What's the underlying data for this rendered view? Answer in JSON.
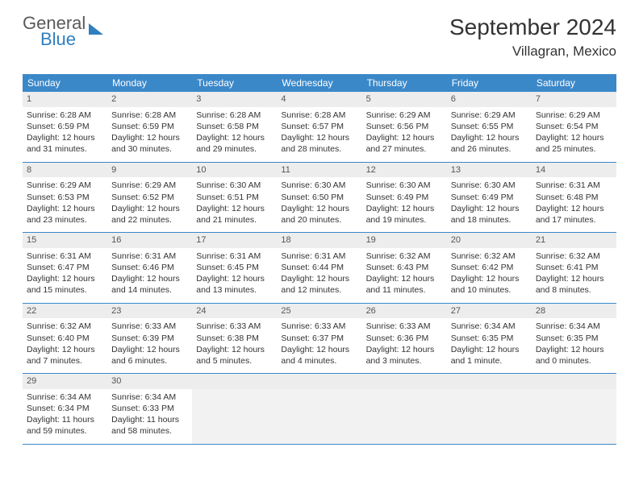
{
  "logo": {
    "word1": "General",
    "word2": "Blue"
  },
  "title": "September 2024",
  "location": "Villagran, Mexico",
  "colors": {
    "header_bg": "#3b88c9",
    "header_text": "#ffffff",
    "daynum_bg": "#ededed",
    "body_text": "#333333",
    "divider": "#3b88c9",
    "logo_gray": "#5a5a5a",
    "logo_blue": "#2f7fbf"
  },
  "typography": {
    "title_fontsize": 28,
    "location_fontsize": 17,
    "dayheader_fontsize": 12,
    "cell_fontsize": 10.5
  },
  "day_names": [
    "Sunday",
    "Monday",
    "Tuesday",
    "Wednesday",
    "Thursday",
    "Friday",
    "Saturday"
  ],
  "weeks": [
    [
      {
        "n": "1",
        "sunrise": "Sunrise: 6:28 AM",
        "sunset": "Sunset: 6:59 PM",
        "day": "Daylight: 12 hours and 31 minutes."
      },
      {
        "n": "2",
        "sunrise": "Sunrise: 6:28 AM",
        "sunset": "Sunset: 6:59 PM",
        "day": "Daylight: 12 hours and 30 minutes."
      },
      {
        "n": "3",
        "sunrise": "Sunrise: 6:28 AM",
        "sunset": "Sunset: 6:58 PM",
        "day": "Daylight: 12 hours and 29 minutes."
      },
      {
        "n": "4",
        "sunrise": "Sunrise: 6:28 AM",
        "sunset": "Sunset: 6:57 PM",
        "day": "Daylight: 12 hours and 28 minutes."
      },
      {
        "n": "5",
        "sunrise": "Sunrise: 6:29 AM",
        "sunset": "Sunset: 6:56 PM",
        "day": "Daylight: 12 hours and 27 minutes."
      },
      {
        "n": "6",
        "sunrise": "Sunrise: 6:29 AM",
        "sunset": "Sunset: 6:55 PM",
        "day": "Daylight: 12 hours and 26 minutes."
      },
      {
        "n": "7",
        "sunrise": "Sunrise: 6:29 AM",
        "sunset": "Sunset: 6:54 PM",
        "day": "Daylight: 12 hours and 25 minutes."
      }
    ],
    [
      {
        "n": "8",
        "sunrise": "Sunrise: 6:29 AM",
        "sunset": "Sunset: 6:53 PM",
        "day": "Daylight: 12 hours and 23 minutes."
      },
      {
        "n": "9",
        "sunrise": "Sunrise: 6:29 AM",
        "sunset": "Sunset: 6:52 PM",
        "day": "Daylight: 12 hours and 22 minutes."
      },
      {
        "n": "10",
        "sunrise": "Sunrise: 6:30 AM",
        "sunset": "Sunset: 6:51 PM",
        "day": "Daylight: 12 hours and 21 minutes."
      },
      {
        "n": "11",
        "sunrise": "Sunrise: 6:30 AM",
        "sunset": "Sunset: 6:50 PM",
        "day": "Daylight: 12 hours and 20 minutes."
      },
      {
        "n": "12",
        "sunrise": "Sunrise: 6:30 AM",
        "sunset": "Sunset: 6:49 PM",
        "day": "Daylight: 12 hours and 19 minutes."
      },
      {
        "n": "13",
        "sunrise": "Sunrise: 6:30 AM",
        "sunset": "Sunset: 6:49 PM",
        "day": "Daylight: 12 hours and 18 minutes."
      },
      {
        "n": "14",
        "sunrise": "Sunrise: 6:31 AM",
        "sunset": "Sunset: 6:48 PM",
        "day": "Daylight: 12 hours and 17 minutes."
      }
    ],
    [
      {
        "n": "15",
        "sunrise": "Sunrise: 6:31 AM",
        "sunset": "Sunset: 6:47 PM",
        "day": "Daylight: 12 hours and 15 minutes."
      },
      {
        "n": "16",
        "sunrise": "Sunrise: 6:31 AM",
        "sunset": "Sunset: 6:46 PM",
        "day": "Daylight: 12 hours and 14 minutes."
      },
      {
        "n": "17",
        "sunrise": "Sunrise: 6:31 AM",
        "sunset": "Sunset: 6:45 PM",
        "day": "Daylight: 12 hours and 13 minutes."
      },
      {
        "n": "18",
        "sunrise": "Sunrise: 6:31 AM",
        "sunset": "Sunset: 6:44 PM",
        "day": "Daylight: 12 hours and 12 minutes."
      },
      {
        "n": "19",
        "sunrise": "Sunrise: 6:32 AM",
        "sunset": "Sunset: 6:43 PM",
        "day": "Daylight: 12 hours and 11 minutes."
      },
      {
        "n": "20",
        "sunrise": "Sunrise: 6:32 AM",
        "sunset": "Sunset: 6:42 PM",
        "day": "Daylight: 12 hours and 10 minutes."
      },
      {
        "n": "21",
        "sunrise": "Sunrise: 6:32 AM",
        "sunset": "Sunset: 6:41 PM",
        "day": "Daylight: 12 hours and 8 minutes."
      }
    ],
    [
      {
        "n": "22",
        "sunrise": "Sunrise: 6:32 AM",
        "sunset": "Sunset: 6:40 PM",
        "day": "Daylight: 12 hours and 7 minutes."
      },
      {
        "n": "23",
        "sunrise": "Sunrise: 6:33 AM",
        "sunset": "Sunset: 6:39 PM",
        "day": "Daylight: 12 hours and 6 minutes."
      },
      {
        "n": "24",
        "sunrise": "Sunrise: 6:33 AM",
        "sunset": "Sunset: 6:38 PM",
        "day": "Daylight: 12 hours and 5 minutes."
      },
      {
        "n": "25",
        "sunrise": "Sunrise: 6:33 AM",
        "sunset": "Sunset: 6:37 PM",
        "day": "Daylight: 12 hours and 4 minutes."
      },
      {
        "n": "26",
        "sunrise": "Sunrise: 6:33 AM",
        "sunset": "Sunset: 6:36 PM",
        "day": "Daylight: 12 hours and 3 minutes."
      },
      {
        "n": "27",
        "sunrise": "Sunrise: 6:34 AM",
        "sunset": "Sunset: 6:35 PM",
        "day": "Daylight: 12 hours and 1 minute."
      },
      {
        "n": "28",
        "sunrise": "Sunrise: 6:34 AM",
        "sunset": "Sunset: 6:35 PM",
        "day": "Daylight: 12 hours and 0 minutes."
      }
    ],
    [
      {
        "n": "29",
        "sunrise": "Sunrise: 6:34 AM",
        "sunset": "Sunset: 6:34 PM",
        "day": "Daylight: 11 hours and 59 minutes."
      },
      {
        "n": "30",
        "sunrise": "Sunrise: 6:34 AM",
        "sunset": "Sunset: 6:33 PM",
        "day": "Daylight: 11 hours and 58 minutes."
      },
      null,
      null,
      null,
      null,
      null
    ]
  ]
}
